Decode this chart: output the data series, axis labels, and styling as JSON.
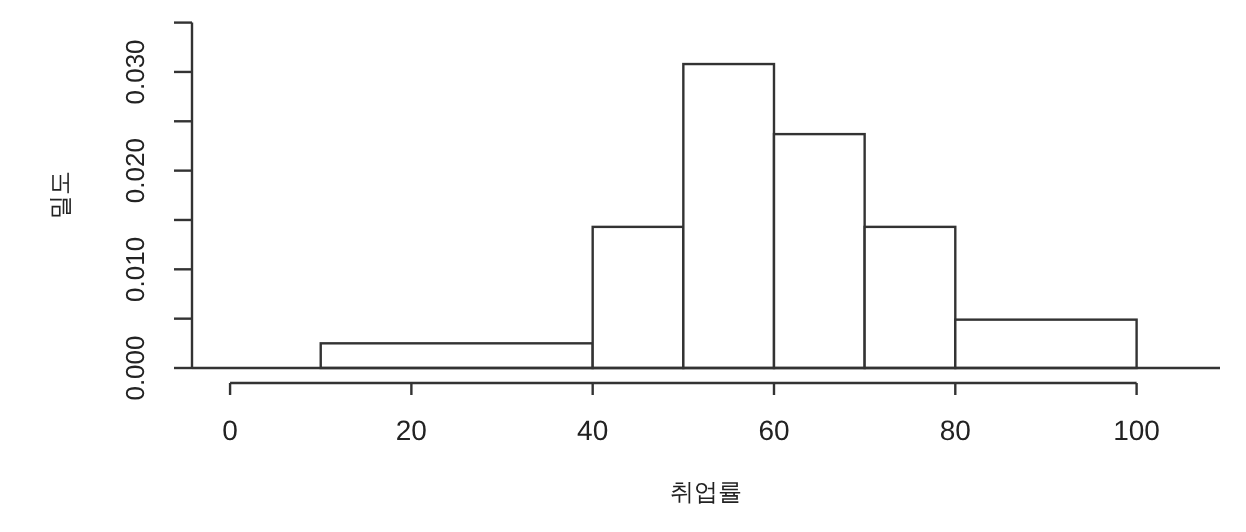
{
  "chart_data": {
    "type": "histogram",
    "xlabel": "취업률",
    "ylabel": "밀도",
    "bins": [
      10,
      40,
      50,
      60,
      70,
      80,
      100
    ],
    "values": [
      0.0025,
      0.0143,
      0.0308,
      0.0237,
      0.0143,
      0.0049
    ],
    "color": "#ffffff",
    "xlim": [
      -4.2,
      109.2
    ],
    "ylim": [
      0,
      0.035
    ],
    "xticks": [
      0,
      20,
      40,
      60,
      80,
      100
    ],
    "yticks": [
      {
        "value": 0,
        "label": "0.000"
      },
      {
        "value": 0.005,
        "label": null
      },
      {
        "value": 0.01,
        "label": "0.010"
      },
      {
        "value": 0.015,
        "label": null
      },
      {
        "value": 0.02,
        "label": "0.020"
      },
      {
        "value": 0.025,
        "label": null
      },
      {
        "value": 0.03,
        "label": "0.030"
      },
      {
        "value": 0.035,
        "label": null
      }
    ],
    "ref_lines": [
      {
        "axis": "y",
        "value": 0
      }
    ],
    "grid": false
  }
}
